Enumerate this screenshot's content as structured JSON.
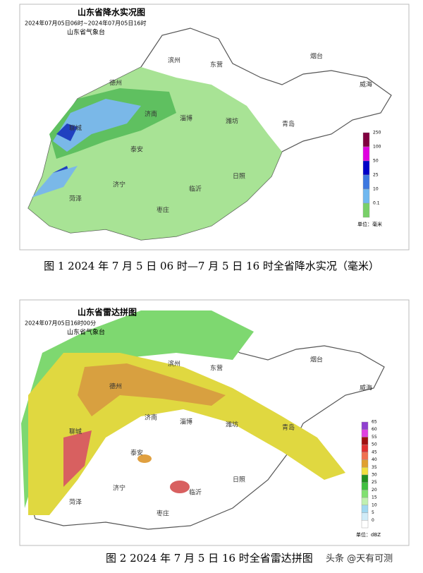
{
  "map1": {
    "title": "山东省降水实况图",
    "subtitle": "2024年07月05日06时~2024年07月05日16时",
    "org": "山东省气象台",
    "cities": [
      "德州",
      "滨州",
      "东营",
      "烟台",
      "威海",
      "济南",
      "淄博",
      "潍坊",
      "青岛",
      "聊城",
      "泰安",
      "济宁",
      "菏泽",
      "临沂",
      "日照",
      "枣庄"
    ],
    "legend": [
      "250",
      "100",
      "50",
      "25",
      "10",
      "0.1"
    ],
    "unit": "单位：毫米",
    "caption": "图 1 2024 年 7 月 5 日 06 时—7 月 5 日 16 时全省降水实况（毫米）"
  },
  "map2": {
    "title": "山东省雷达拼图",
    "subtitle": "2024年07月05日16时00分",
    "org": "山东省气象台",
    "cities": [
      "德州",
      "滨州",
      "东营",
      "烟台",
      "威海",
      "济南",
      "淄博",
      "潍坊",
      "青岛",
      "聊城",
      "泰安",
      "济宁",
      "菏泽",
      "临沂",
      "日照",
      "枣庄"
    ],
    "legend": [
      "65",
      "60",
      "55",
      "50",
      "45",
      "40",
      "35",
      "30",
      "25",
      "20",
      "15",
      "10",
      "5",
      "0"
    ],
    "unit": "单位：dBZ",
    "caption": "图 2 2024 年 7 月 5 日 16 时全省雷达拼图",
    "watermark": "头条 @天有可测"
  }
}
